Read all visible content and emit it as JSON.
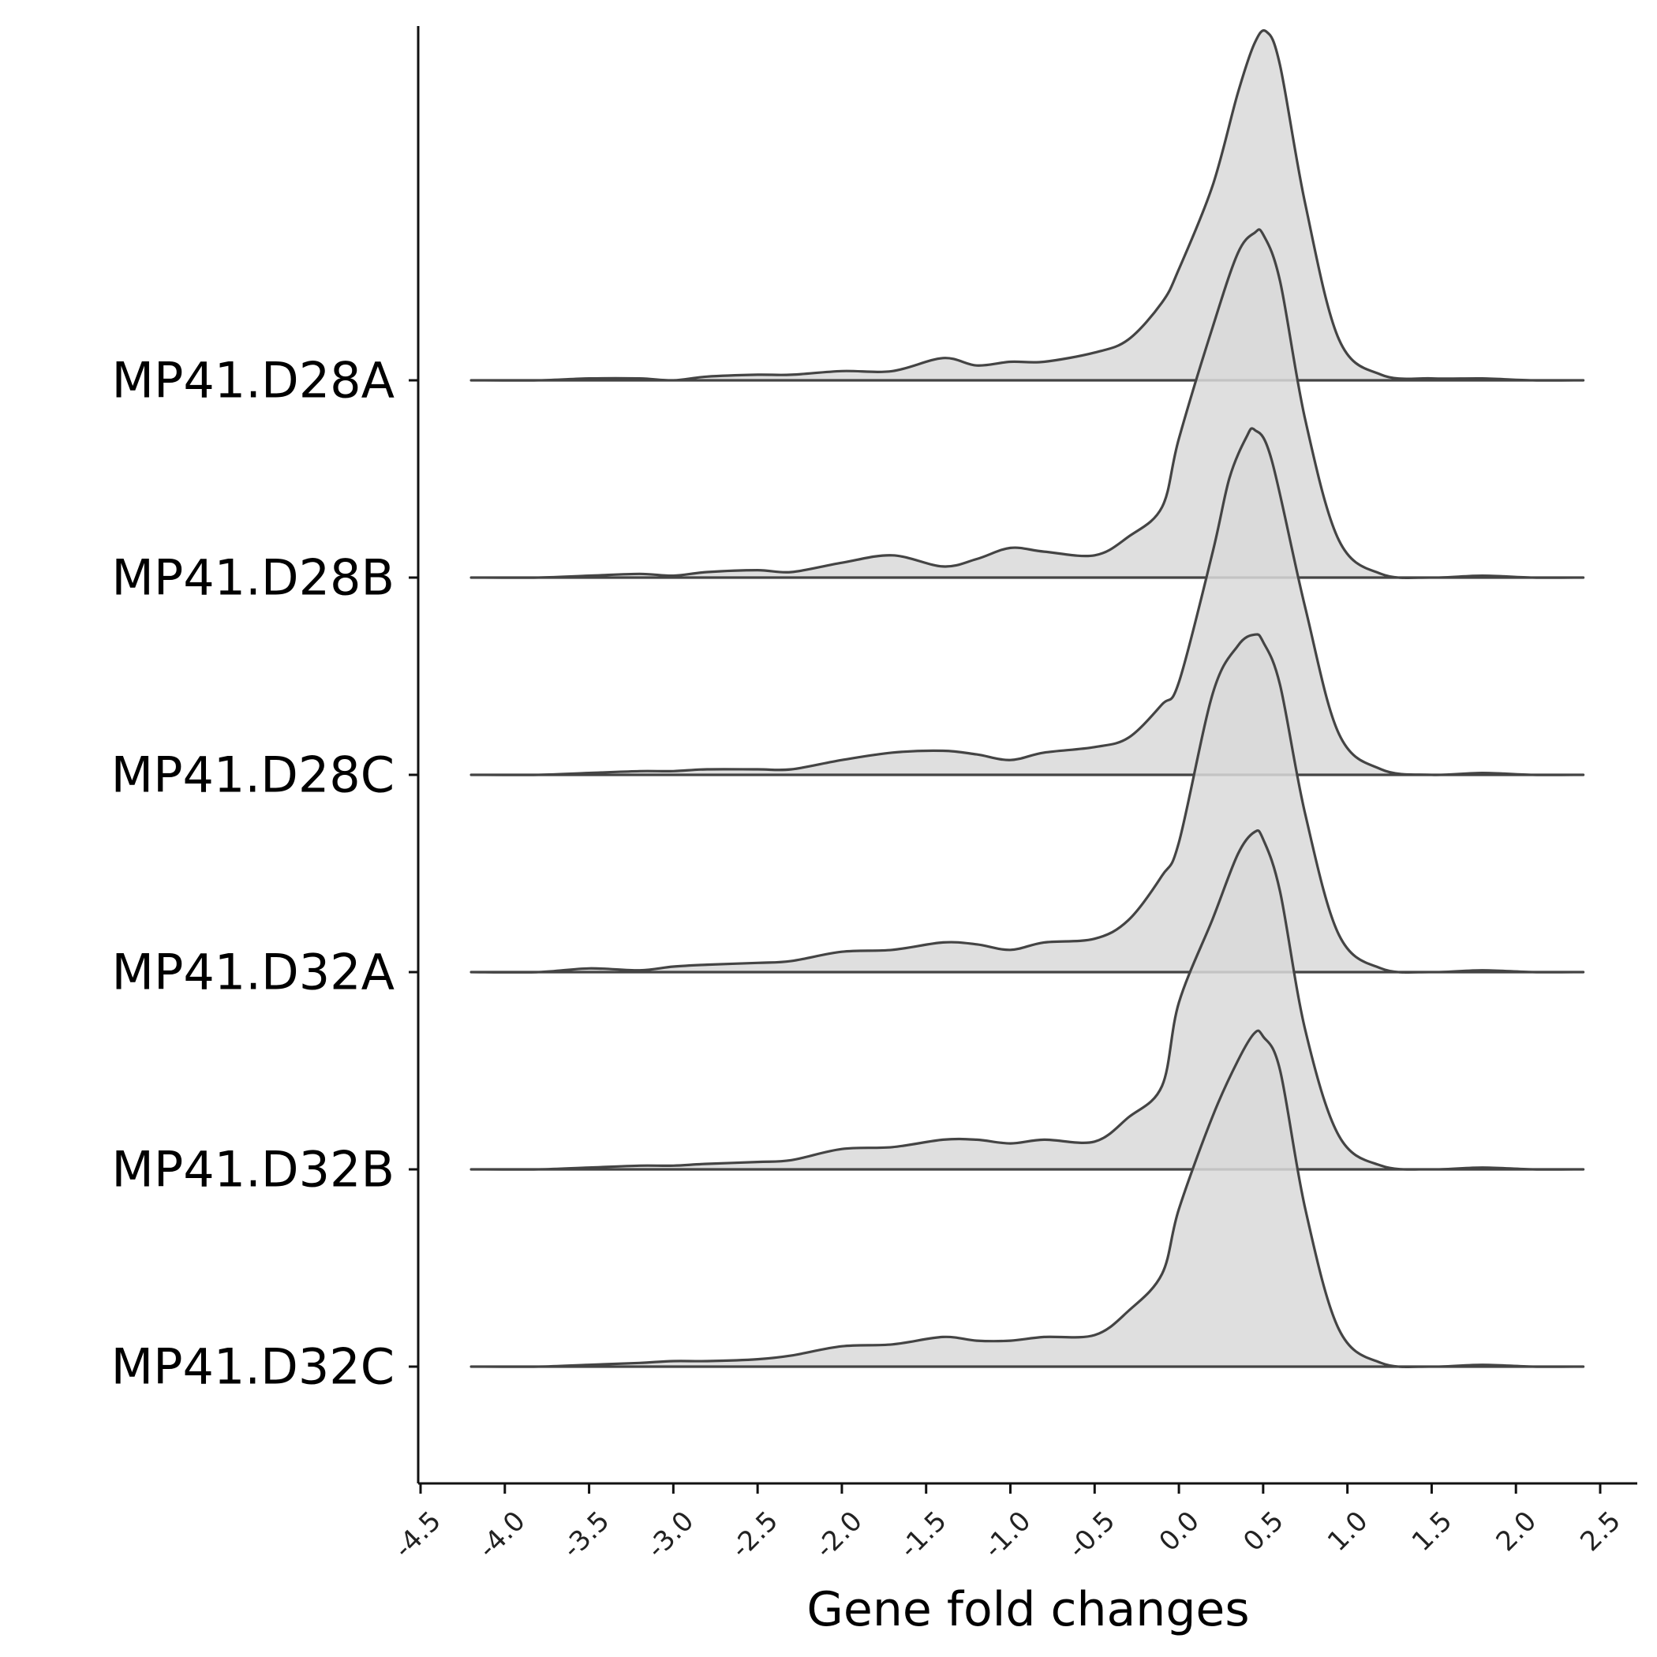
{
  "chart_data": {
    "type": "ridgeline",
    "xlabel": "Gene fold changes",
    "ylabel": "",
    "xlim": [
      -4.5,
      2.5
    ],
    "xticks": [
      "-4.5",
      "-4.0",
      "-3.5",
      "-3.0",
      "-2.5",
      "-2.0",
      "-1.5",
      "-1.0",
      "-0.5",
      "0.0",
      "0.5",
      "1.0",
      "1.5",
      "2.0",
      "2.5"
    ],
    "fill_color": "#d9d9d9",
    "line_color": "#444444",
    "legend": "none",
    "grid": false,
    "series": [
      {
        "name": "MP41.D28A",
        "x": [
          -4.2,
          -3.8,
          -3.5,
          -3.2,
          -3.0,
          -2.8,
          -2.5,
          -2.3,
          -2.0,
          -1.7,
          -1.4,
          -1.2,
          -1.0,
          -0.8,
          -0.5,
          -0.3,
          -0.1,
          0.0,
          0.2,
          0.35,
          0.45,
          0.52,
          0.6,
          0.75,
          0.95,
          1.2,
          1.5,
          1.8,
          2.1,
          2.4
        ],
        "density": [
          0.0,
          0.0,
          0.01,
          0.01,
          0.0,
          0.02,
          0.03,
          0.03,
          0.05,
          0.05,
          0.12,
          0.08,
          0.1,
          0.1,
          0.15,
          0.22,
          0.42,
          0.6,
          1.05,
          1.55,
          1.82,
          1.88,
          1.7,
          0.95,
          0.22,
          0.03,
          0.01,
          0.01,
          0.0,
          0.0
        ]
      },
      {
        "name": "MP41.D28B",
        "x": [
          -4.2,
          -3.8,
          -3.5,
          -3.2,
          -3.0,
          -2.8,
          -2.5,
          -2.3,
          -2.0,
          -1.7,
          -1.4,
          -1.2,
          -1.0,
          -0.8,
          -0.5,
          -0.3,
          -0.1,
          0.0,
          0.2,
          0.35,
          0.45,
          0.5,
          0.6,
          0.75,
          0.95,
          1.2,
          1.5,
          1.8,
          2.1,
          2.4
        ],
        "density": [
          0.0,
          0.0,
          0.01,
          0.02,
          0.01,
          0.03,
          0.04,
          0.03,
          0.08,
          0.12,
          0.06,
          0.1,
          0.16,
          0.14,
          0.12,
          0.22,
          0.38,
          0.75,
          1.35,
          1.75,
          1.86,
          1.85,
          1.6,
          0.85,
          0.2,
          0.02,
          0.0,
          0.01,
          0.0,
          0.0
        ]
      },
      {
        "name": "MP41.D28C",
        "x": [
          -4.2,
          -3.8,
          -3.5,
          -3.2,
          -3.0,
          -2.8,
          -2.5,
          -2.3,
          -2.0,
          -1.7,
          -1.4,
          -1.2,
          -1.0,
          -0.8,
          -0.5,
          -0.3,
          -0.1,
          0.0,
          0.2,
          0.3,
          0.4,
          0.45,
          0.55,
          0.75,
          0.95,
          1.2,
          1.5,
          1.8,
          2.1,
          2.4
        ],
        "density": [
          0.0,
          0.0,
          0.01,
          0.02,
          0.02,
          0.03,
          0.03,
          0.03,
          0.08,
          0.12,
          0.13,
          0.11,
          0.08,
          0.12,
          0.15,
          0.2,
          0.38,
          0.5,
          1.2,
          1.6,
          1.82,
          1.86,
          1.7,
          0.9,
          0.22,
          0.03,
          0.0,
          0.01,
          0.0,
          0.0
        ]
      },
      {
        "name": "MP41.D32A",
        "x": [
          -4.2,
          -3.8,
          -3.5,
          -3.2,
          -3.0,
          -2.8,
          -2.5,
          -2.3,
          -2.0,
          -1.7,
          -1.4,
          -1.2,
          -1.0,
          -0.8,
          -0.5,
          -0.3,
          -0.1,
          0.0,
          0.2,
          0.35,
          0.45,
          0.5,
          0.6,
          0.75,
          0.95,
          1.2,
          1.5,
          1.8,
          2.1,
          2.4
        ],
        "density": [
          0.0,
          0.0,
          0.02,
          0.01,
          0.03,
          0.04,
          0.05,
          0.06,
          0.11,
          0.12,
          0.16,
          0.15,
          0.12,
          0.16,
          0.18,
          0.28,
          0.52,
          0.7,
          1.5,
          1.76,
          1.82,
          1.78,
          1.55,
          0.85,
          0.2,
          0.02,
          0.0,
          0.01,
          0.0,
          0.0
        ]
      },
      {
        "name": "MP41.D32B",
        "x": [
          -4.2,
          -3.8,
          -3.5,
          -3.2,
          -3.0,
          -2.8,
          -2.5,
          -2.3,
          -2.0,
          -1.7,
          -1.4,
          -1.2,
          -1.0,
          -0.8,
          -0.5,
          -0.3,
          -0.1,
          0.0,
          0.2,
          0.35,
          0.45,
          0.5,
          0.6,
          0.75,
          0.95,
          1.2,
          1.5,
          1.8,
          2.1,
          2.4
        ],
        "density": [
          0.0,
          0.0,
          0.01,
          0.02,
          0.02,
          0.03,
          0.04,
          0.05,
          0.11,
          0.12,
          0.16,
          0.16,
          0.14,
          0.16,
          0.15,
          0.28,
          0.45,
          0.9,
          1.35,
          1.7,
          1.82,
          1.78,
          1.5,
          0.75,
          0.18,
          0.02,
          0.0,
          0.01,
          0.0,
          0.0
        ]
      },
      {
        "name": "MP41.D32C",
        "x": [
          -4.2,
          -3.8,
          -3.5,
          -3.2,
          -3.0,
          -2.8,
          -2.5,
          -2.3,
          -2.0,
          -1.7,
          -1.4,
          -1.2,
          -1.0,
          -0.8,
          -0.5,
          -0.3,
          -0.1,
          0.0,
          0.2,
          0.35,
          0.45,
          0.5,
          0.6,
          0.75,
          0.95,
          1.2,
          1.5,
          1.8,
          2.1,
          2.4
        ],
        "density": [
          0.0,
          0.0,
          0.01,
          0.02,
          0.03,
          0.03,
          0.04,
          0.06,
          0.11,
          0.12,
          0.16,
          0.14,
          0.14,
          0.16,
          0.17,
          0.3,
          0.5,
          0.85,
          1.35,
          1.65,
          1.8,
          1.78,
          1.6,
          0.85,
          0.2,
          0.02,
          0.0,
          0.01,
          0.0,
          0.0
        ]
      }
    ]
  }
}
